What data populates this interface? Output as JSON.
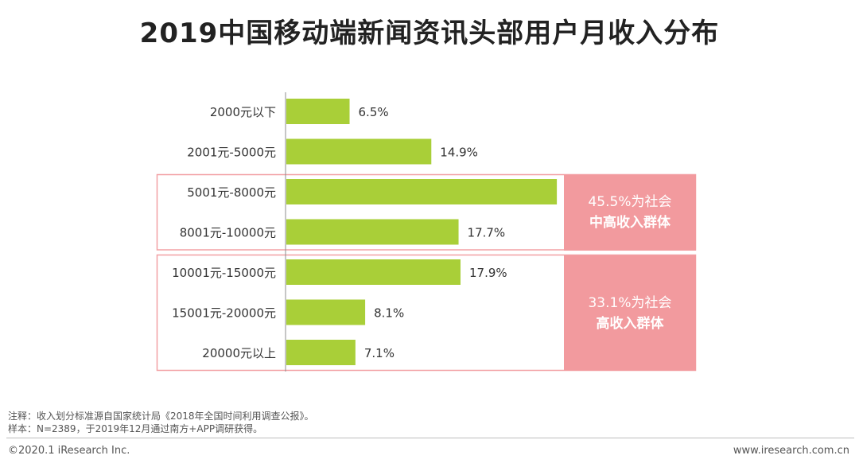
{
  "chart_data": {
    "type": "bar",
    "orientation": "horizontal",
    "title": "2019中国移动端新闻资讯头部用户月收入分布",
    "categories": [
      "2000元以下",
      "2001元-5000元",
      "5001元-8000元",
      "8001元-10000元",
      "10001元-15000元",
      "15001元-20000元",
      "20000元以上"
    ],
    "values": [
      6.5,
      14.9,
      27.8,
      17.7,
      17.9,
      8.1,
      7.1
    ],
    "labels": [
      "6.5%",
      "14.9%",
      "",
      "17.7%",
      "17.9%",
      "8.1%",
      "7.1%"
    ],
    "xlim": [
      0,
      28.2
    ],
    "bar_color": "#a9cf38",
    "grid": false,
    "groups": [
      {
        "first": 2,
        "last": 3,
        "line1": "45.5%为社会",
        "line2": "中高收入群体"
      },
      {
        "first": 4,
        "last": 6,
        "line1": "33.1%为社会",
        "line2": "高收入群体"
      }
    ],
    "group_border_color": "#f2a0a4",
    "group_fill_color": "#f29a9e"
  },
  "notes": {
    "line1": "注释：收入划分标准源自国家统计局《2018年全国时间利用调查公报》。",
    "line2": "样本：N=2389，于2019年12月通过南方+APP调研获得。"
  },
  "footer": {
    "copyright": "©2020.1 iResearch Inc.",
    "website": "www.iresearch.com.cn"
  }
}
